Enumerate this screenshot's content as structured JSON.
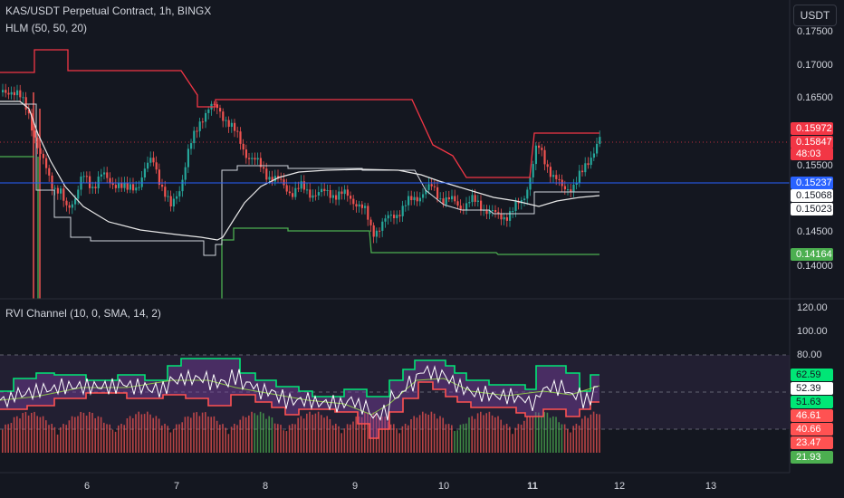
{
  "header": {
    "symbol_title": "KAS/USDT Perpetual Contract, 1h, BINGX",
    "indicator_hlm": "HLM (50, 50, 20)",
    "indicator_rvi": "RVI Channel (10, 0, SMA, 14, 2)"
  },
  "currency_button": "USDT",
  "price_axis_labels": [
    "0.17500",
    "0.17000",
    "0.16500",
    "0.15500",
    "0.14500",
    "0.14000"
  ],
  "price_tags": {
    "high_line": "0.15972",
    "last_price": "0.15847",
    "countdown": "48:03",
    "blue_line": "0.15237",
    "white_a": "0.15068",
    "white_b": "0.15023",
    "low_line": "0.14164"
  },
  "rvi_axis_labels": [
    "120.00",
    "100.00",
    "80.00"
  ],
  "rvi_tags": {
    "upper": "62.59",
    "rvi": "52.39",
    "mid": "51.63",
    "lower": "46.61",
    "val_a": "40.66",
    "val_b": "23.47",
    "val_c": "21.93"
  },
  "time_axis_labels": [
    {
      "text": "6"
    },
    {
      "text": "7"
    },
    {
      "text": "8"
    },
    {
      "text": "9"
    },
    {
      "text": "10"
    },
    {
      "text": "11",
      "bold": true
    },
    {
      "text": "12"
    },
    {
      "text": "13"
    }
  ],
  "colors": {
    "background": "#141720",
    "up": "#26a69a",
    "down": "#ef5350",
    "high_line": "#f23645",
    "low_line": "#4caf50",
    "blue_line": "#2962ff",
    "rvi_upper": "#00e676",
    "rvi_lower": "#ff5252"
  }
}
